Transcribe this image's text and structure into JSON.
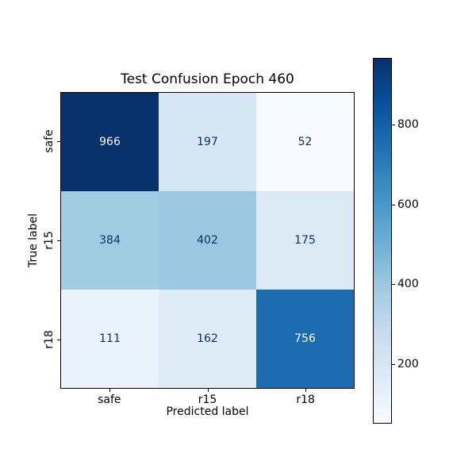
{
  "chart_data": {
    "type": "heatmap",
    "title": "Test Confusion Epoch 460",
    "xlabel": "Predicted label",
    "ylabel": "True label",
    "x_tick_labels": [
      "safe",
      "r15",
      "r18"
    ],
    "y_tick_labels": [
      "safe",
      "r15",
      "r18"
    ],
    "matrix": [
      [
        966,
        197,
        52
      ],
      [
        384,
        402,
        175
      ],
      [
        111,
        162,
        756
      ]
    ],
    "vmin": 52,
    "vmax": 966,
    "colormap": "Blues",
    "colormap_anchors": [
      {
        "pos": 0.0,
        "color": "#f7fbff"
      },
      {
        "pos": 0.125,
        "color": "#deebf7"
      },
      {
        "pos": 0.25,
        "color": "#c6dbef"
      },
      {
        "pos": 0.375,
        "color": "#9ecae1"
      },
      {
        "pos": 0.5,
        "color": "#6baed6"
      },
      {
        "pos": 0.625,
        "color": "#4292c6"
      },
      {
        "pos": 0.75,
        "color": "#2171b5"
      },
      {
        "pos": 0.875,
        "color": "#08519c"
      },
      {
        "pos": 1.0,
        "color": "#08306b"
      }
    ],
    "colorbar_ticks": [
      200,
      400,
      600,
      800
    ],
    "annotation_colors": {
      "dark": "#08306b",
      "light": "#f7fbff"
    },
    "axis_color": "#000000",
    "background": "#ffffff",
    "grid": false,
    "legend_position": "colorbar-right"
  }
}
